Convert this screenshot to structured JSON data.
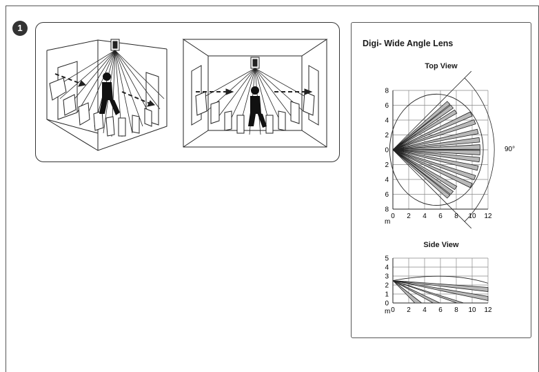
{
  "step": {
    "number": "1"
  },
  "panel": {
    "title": "Digi- Wide Angle Lens",
    "top_view": {
      "title": "Top View",
      "unit": "m",
      "x_ticks": [
        "0",
        "2",
        "4",
        "6",
        "8",
        "10",
        "12"
      ],
      "y_ticks": [
        "8",
        "6",
        "4",
        "2",
        "0",
        "2",
        "4",
        "6",
        "8"
      ],
      "angle_label": "90°"
    },
    "side_view": {
      "title": "Side View",
      "unit": "m",
      "x_ticks": [
        "0",
        "2",
        "4",
        "6",
        "8",
        "10",
        "12"
      ],
      "y_ticks": [
        "5",
        "4",
        "3",
        "2",
        "1",
        "0"
      ]
    }
  },
  "chart_data": [
    {
      "type": "diagram",
      "title": "Top View",
      "xlabel": "m",
      "xlim": [
        0,
        12
      ],
      "ylim": [
        -8,
        8
      ],
      "coverage_angle_deg": 90,
      "grid": true,
      "beam_angles_deg": [
        42,
        38,
        33,
        26,
        20,
        13,
        7,
        2,
        -2,
        -7,
        -13,
        -20,
        -26,
        -33,
        -38,
        -42
      ],
      "beam_length_m": 11
    },
    {
      "type": "diagram",
      "title": "Side View",
      "xlabel": "m",
      "xlim": [
        0,
        12
      ],
      "ylim": [
        0,
        5
      ],
      "grid": true,
      "mount_height_m": 2.5,
      "beam_ends": [
        [
          3.2,
          0
        ],
        [
          5.5,
          0
        ],
        [
          8.5,
          0
        ],
        [
          12,
          0.5
        ],
        [
          12,
          1.5
        ]
      ]
    }
  ],
  "colors": {
    "beam_fill": "#b9b9b9",
    "stroke": "#222222",
    "frame": "#555555"
  }
}
